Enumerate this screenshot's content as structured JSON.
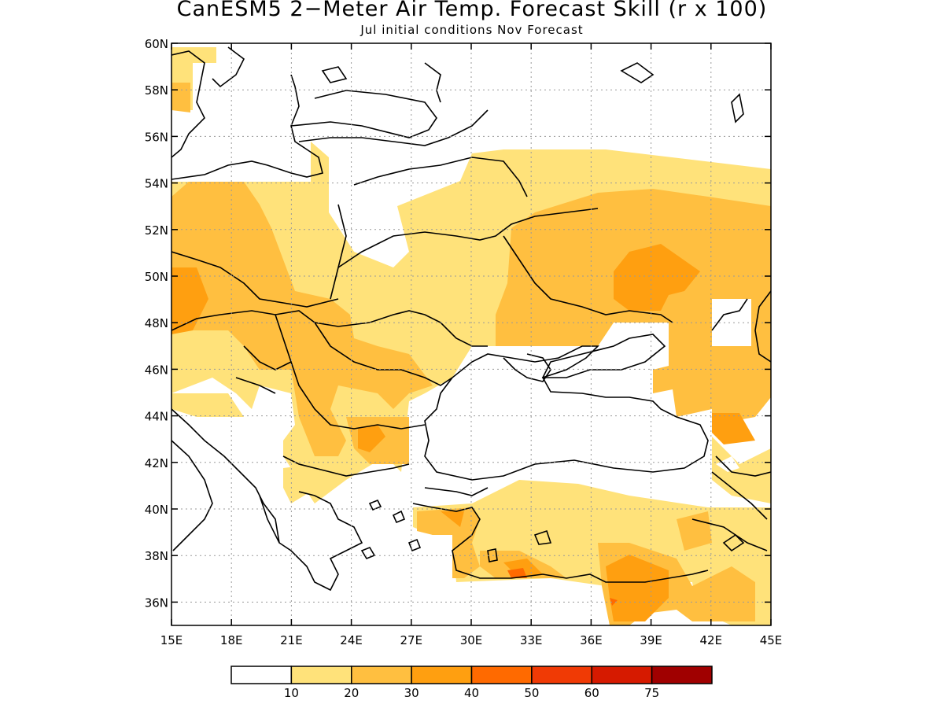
{
  "title": "CanESM5 2−Meter Air Temp. Forecast Skill (r x 100)",
  "subtitle": "Jul initial conditions  Nov Forecast",
  "map": {
    "lon_range": [
      15,
      45
    ],
    "lat_range": [
      35,
      60
    ],
    "lon_ticks": [
      "15E",
      "18E",
      "21E",
      "24E",
      "27E",
      "30E",
      "33E",
      "36E",
      "39E",
      "42E",
      "45E"
    ],
    "lat_ticks": [
      "36N",
      "38N",
      "40N",
      "42N",
      "44N",
      "46N",
      "48N",
      "50N",
      "52N",
      "54N",
      "56N",
      "58N",
      "60N"
    ],
    "grid": true
  },
  "legend": {
    "labels": [
      "10",
      "20",
      "30",
      "40",
      "50",
      "60",
      "75"
    ],
    "colors": [
      "#ffffff",
      "#ffe27a",
      "#ffbf40",
      "#ff9f10",
      "#ff6a00",
      "#f03a05",
      "#d61a00",
      "#a00000"
    ]
  },
  "regions": [
    {
      "name": "skill-10-20",
      "color": "#ffe27a"
    },
    {
      "name": "skill-20-30",
      "color": "#ffbf40"
    },
    {
      "name": "skill-30-40",
      "color": "#ff9f10"
    },
    {
      "name": "skill-40-50",
      "color": "#ff6a00"
    },
    {
      "name": "no-skill",
      "color": "#ffffff"
    }
  ]
}
